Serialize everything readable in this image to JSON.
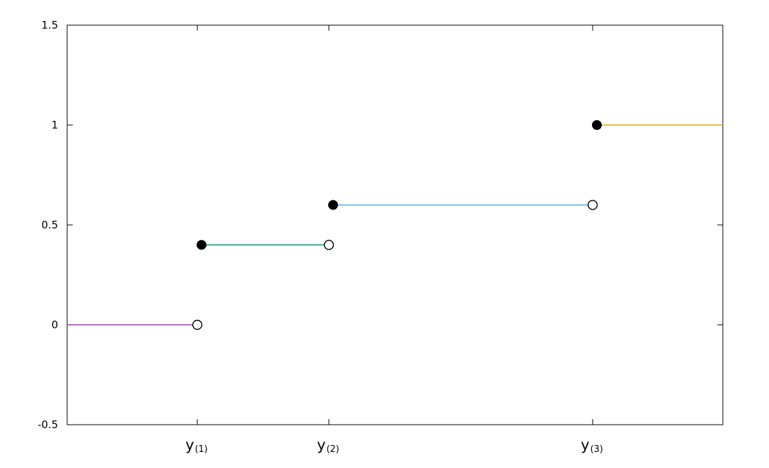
{
  "chart_data": {
    "type": "line",
    "subtype": "step-function",
    "title": "",
    "xlabel": "",
    "ylabel": "",
    "ylim": [
      -0.5,
      1.5
    ],
    "xlim": [
      0,
      5
    ],
    "grid": false,
    "yticks": [
      {
        "value": -0.5,
        "label": "-0.5"
      },
      {
        "value": 0,
        "label": "0"
      },
      {
        "value": 0.5,
        "label": "0.5"
      },
      {
        "value": 1,
        "label": "1"
      },
      {
        "value": 1.5,
        "label": "1.5"
      }
    ],
    "xticks": [
      {
        "value": 1,
        "main": "y",
        "sub": "(1)"
      },
      {
        "value": 2,
        "main": "y",
        "sub": "(2)"
      },
      {
        "value": 4,
        "main": "y",
        "sub": "(3)"
      }
    ],
    "series": [
      {
        "x_start": 0,
        "x_end": 1,
        "y": 0,
        "color": "#9b3fb5",
        "closed_start": false,
        "open_end": true
      },
      {
        "x_start": 1,
        "x_end": 2,
        "y": 0.4,
        "color": "#1a9a7a",
        "closed_start": true,
        "open_end": true
      },
      {
        "x_start": 2,
        "x_end": 4,
        "y": 0.6,
        "color": "#5fb4dc",
        "closed_start": true,
        "open_end": true
      },
      {
        "x_start": 4,
        "x_end": 5,
        "y": 1,
        "color": "#e6a800",
        "closed_start": true,
        "open_end": false
      }
    ]
  }
}
